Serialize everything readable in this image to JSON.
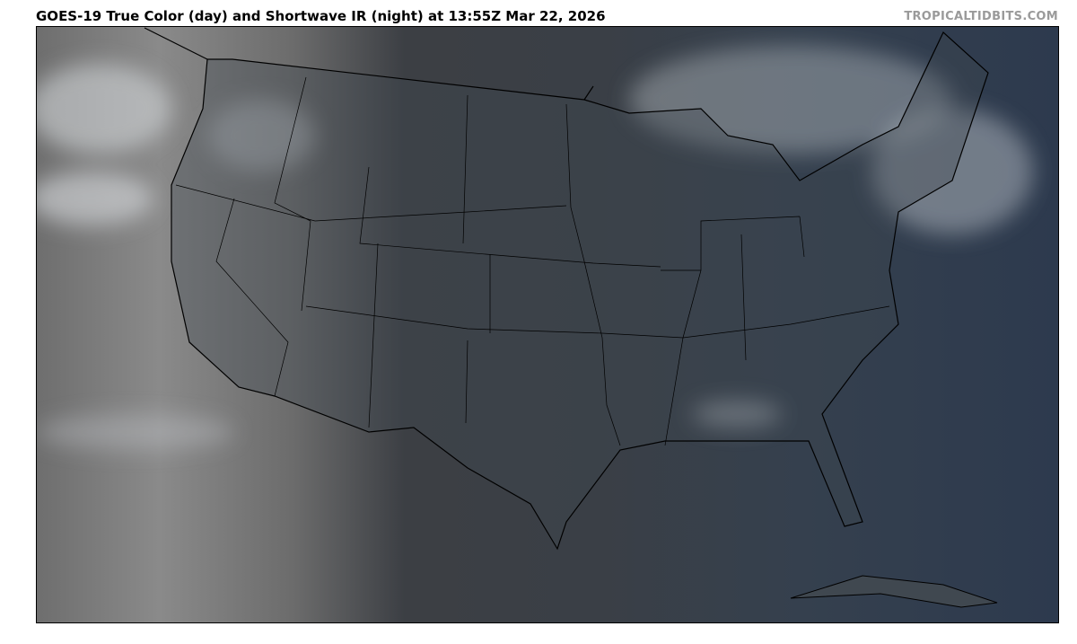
{
  "header": {
    "title": "GOES-19 True Color (day) and Shortwave IR (night) at 13:55Z Mar 22, 2026",
    "credit": "TROPICALTIDBITS.COM"
  },
  "map": {
    "region": "Continental United States",
    "product": "GOES-19 True Color (day) and Shortwave IR (night)",
    "colors": {
      "night_ir": "#7a7a7a",
      "land_day": "#3c4046",
      "ocean_day": "#2d3a4e",
      "borders": "#000000"
    }
  }
}
